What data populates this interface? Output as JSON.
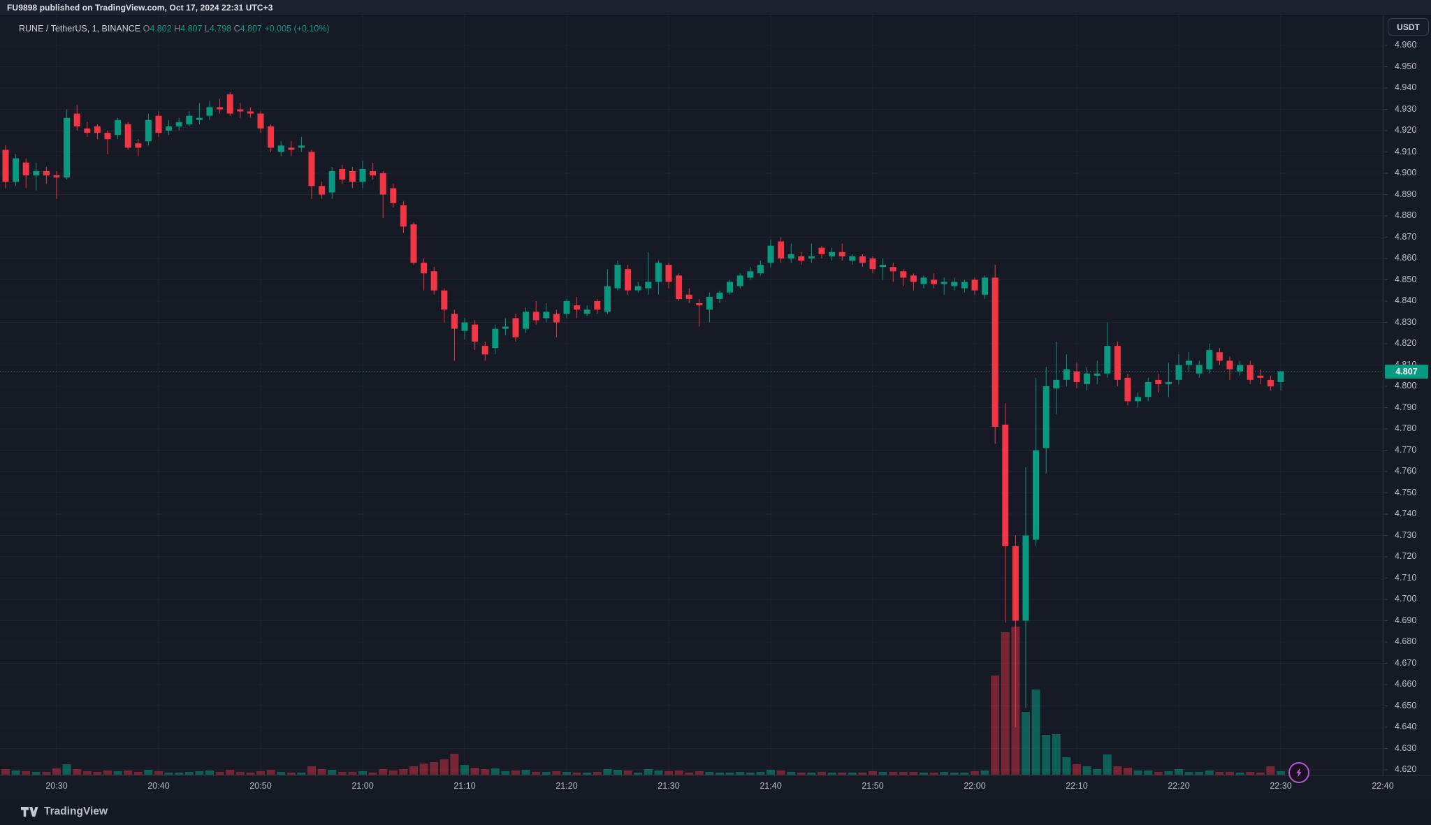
{
  "attribution": {
    "text": "FU9898 published on TradingView.com, Oct 17, 2024 22:31 UTC+3"
  },
  "legend": {
    "symbol": "RUNE / TetherUS, 1, BINANCE",
    "o_label": "O",
    "o": "4.802",
    "h_label": "H",
    "h": "4.807",
    "l_label": "L",
    "l": "4.798",
    "c_label": "C",
    "c": "4.807",
    "change": "+0.005 (+0.10%)"
  },
  "price_axis": {
    "unit_button": "USDT",
    "current_price_label": "4.807",
    "labels": [
      "4.960",
      "4.950",
      "4.940",
      "4.930",
      "4.920",
      "4.910",
      "4.900",
      "4.890",
      "4.880",
      "4.870",
      "4.860",
      "4.850",
      "4.840",
      "4.830",
      "4.820",
      "4.810",
      "4.800",
      "4.790",
      "4.780",
      "4.770",
      "4.760",
      "4.750",
      "4.740",
      "4.730",
      "4.720",
      "4.710",
      "4.700",
      "4.690",
      "4.680",
      "4.670",
      "4.660",
      "4.650",
      "4.640",
      "4.630",
      "4.620"
    ]
  },
  "time_axis": {
    "labels": [
      "20:30",
      "20:40",
      "20:50",
      "21:00",
      "21:10",
      "21:20",
      "21:30",
      "21:40",
      "21:50",
      "22:00",
      "22:10",
      "22:20",
      "22:30",
      "22:40"
    ]
  },
  "footer": {
    "logo_text": "TradingView"
  },
  "colors": {
    "up": "#089981",
    "down": "#f23645",
    "volume_up": "rgba(8,153,129,0.55)",
    "volume_down": "rgba(242,54,69,0.45)",
    "grid": "rgba(199,210,240,0.06)",
    "tick": "#3a3f4c",
    "price_line": "#089981",
    "chip_bg": "#089981",
    "boost_purple": "#bc55d4"
  },
  "chart_data": {
    "type": "candlestick+volume",
    "symbol": "RUNE/TetherUS",
    "exchange": "BINANCE",
    "interval_minutes": 1,
    "current_price": 4.807,
    "price_axis_range": [
      4.615,
      4.975
    ],
    "time_range": [
      "20:25",
      "22:30"
    ],
    "grid": true,
    "note": "columns per candle: [time, open, high, low, close, volume_rel]",
    "candles": [
      [
        "20:25",
        4.911,
        4.913,
        4.893,
        4.896,
        8
      ],
      [
        "20:26",
        4.896,
        4.909,
        4.894,
        4.907,
        6
      ],
      [
        "20:27",
        4.905,
        4.907,
        4.893,
        4.899,
        5
      ],
      [
        "20:28",
        4.899,
        4.905,
        4.892,
        4.901,
        4
      ],
      [
        "20:29",
        4.901,
        4.903,
        4.895,
        4.899,
        4
      ],
      [
        "20:30",
        4.899,
        4.901,
        4.888,
        4.898,
        9
      ],
      [
        "20:31",
        4.898,
        4.93,
        4.897,
        4.926,
        15
      ],
      [
        "20:32",
        4.928,
        4.932,
        4.92,
        4.922,
        8
      ],
      [
        "20:33",
        4.921,
        4.924,
        4.917,
        4.919,
        5
      ],
      [
        "20:34",
        4.922,
        4.923,
        4.916,
        4.919,
        4
      ],
      [
        "20:35",
        4.919,
        4.92,
        4.909,
        4.916,
        6
      ],
      [
        "20:36",
        4.918,
        4.926,
        4.916,
        4.925,
        5
      ],
      [
        "20:37",
        4.923,
        4.924,
        4.911,
        4.912,
        6
      ],
      [
        "20:38",
        4.914,
        4.916,
        4.908,
        4.912,
        4
      ],
      [
        "20:39",
        4.915,
        4.928,
        4.913,
        4.925,
        7
      ],
      [
        "20:40",
        4.927,
        4.929,
        4.917,
        4.919,
        5
      ],
      [
        "20:41",
        4.92,
        4.925,
        4.918,
        4.922,
        3
      ],
      [
        "20:42",
        4.922,
        4.926,
        4.92,
        4.924,
        3
      ],
      [
        "20:43",
        4.923,
        4.929,
        4.922,
        4.927,
        4
      ],
      [
        "20:44",
        4.925,
        4.933,
        4.923,
        4.926,
        5
      ],
      [
        "20:45",
        4.927,
        4.934,
        4.925,
        4.931,
        6
      ],
      [
        "20:46",
        4.931,
        4.935,
        4.928,
        4.93,
        4
      ],
      [
        "20:47",
        4.937,
        4.938,
        4.927,
        4.928,
        7
      ],
      [
        "20:48",
        4.93,
        4.933,
        4.926,
        4.929,
        4
      ],
      [
        "20:49",
        4.929,
        4.931,
        4.926,
        4.928,
        3
      ],
      [
        "20:50",
        4.928,
        4.929,
        4.919,
        4.921,
        5
      ],
      [
        "20:51",
        4.922,
        4.923,
        4.91,
        4.912,
        7
      ],
      [
        "20:52",
        4.91,
        4.915,
        4.908,
        4.913,
        4
      ],
      [
        "20:53",
        4.912,
        4.915,
        4.908,
        4.911,
        3
      ],
      [
        "20:54",
        4.912,
        4.917,
        4.91,
        4.913,
        3
      ],
      [
        "20:55",
        4.91,
        4.911,
        4.888,
        4.894,
        12
      ],
      [
        "20:56",
        4.894,
        4.896,
        4.888,
        4.89,
        8
      ],
      [
        "20:57",
        4.891,
        4.903,
        4.888,
        4.901,
        7
      ],
      [
        "20:58",
        4.902,
        4.904,
        4.895,
        4.897,
        4
      ],
      [
        "20:59",
        4.901,
        4.903,
        4.893,
        4.896,
        4
      ],
      [
        "21:00",
        4.896,
        4.906,
        4.893,
        4.902,
        5
      ],
      [
        "21:01",
        4.901,
        4.905,
        4.897,
        4.899,
        3
      ],
      [
        "21:02",
        4.9,
        4.901,
        4.879,
        4.89,
        8
      ],
      [
        "21:03",
        4.893,
        4.895,
        4.884,
        4.886,
        6
      ],
      [
        "21:04",
        4.885,
        4.887,
        4.872,
        4.875,
        8
      ],
      [
        "21:05",
        4.876,
        4.877,
        4.857,
        4.858,
        12
      ],
      [
        "21:06",
        4.858,
        4.86,
        4.845,
        4.853,
        16
      ],
      [
        "21:07",
        4.854,
        4.856,
        4.843,
        4.845,
        18
      ],
      [
        "21:08",
        4.845,
        4.846,
        4.83,
        4.836,
        22
      ],
      [
        "21:09",
        4.834,
        4.836,
        4.812,
        4.827,
        30
      ],
      [
        "21:10",
        4.826,
        4.832,
        4.822,
        4.83,
        14
      ],
      [
        "21:11",
        4.829,
        4.831,
        4.817,
        4.821,
        10
      ],
      [
        "21:12",
        4.819,
        4.821,
        4.812,
        4.815,
        8
      ],
      [
        "21:13",
        4.818,
        4.829,
        4.815,
        4.827,
        9
      ],
      [
        "21:14",
        4.827,
        4.832,
        4.824,
        4.828,
        5
      ],
      [
        "21:15",
        4.832,
        4.834,
        4.821,
        4.823,
        6
      ],
      [
        "21:16",
        4.827,
        4.837,
        4.825,
        4.835,
        7
      ],
      [
        "21:17",
        4.835,
        4.84,
        4.829,
        4.831,
        4
      ],
      [
        "21:18",
        4.832,
        4.839,
        4.83,
        4.835,
        4
      ],
      [
        "21:19",
        4.834,
        4.836,
        4.823,
        4.83,
        5
      ],
      [
        "21:20",
        4.834,
        4.841,
        4.832,
        4.84,
        4
      ],
      [
        "21:21",
        4.838,
        4.842,
        4.832,
        4.836,
        3
      ],
      [
        "21:22",
        4.834,
        4.838,
        4.833,
        4.836,
        3
      ],
      [
        "21:23",
        4.84,
        4.841,
        4.834,
        4.836,
        4
      ],
      [
        "21:24",
        4.835,
        4.855,
        4.834,
        4.847,
        8
      ],
      [
        "21:25",
        4.846,
        4.859,
        4.845,
        4.857,
        7
      ],
      [
        "21:26",
        4.855,
        4.857,
        4.843,
        4.845,
        6
      ],
      [
        "21:27",
        4.845,
        4.849,
        4.844,
        4.847,
        3
      ],
      [
        "21:28",
        4.846,
        4.863,
        4.843,
        4.849,
        8
      ],
      [
        "21:29",
        4.849,
        4.859,
        4.843,
        4.858,
        6
      ],
      [
        "21:30",
        4.857,
        4.858,
        4.846,
        4.849,
        5
      ],
      [
        "21:31",
        4.852,
        4.853,
        4.84,
        4.841,
        6
      ],
      [
        "21:32",
        4.843,
        4.846,
        4.839,
        4.841,
        3
      ],
      [
        "21:33",
        4.839,
        4.841,
        4.828,
        4.838,
        5
      ],
      [
        "21:34",
        4.836,
        4.844,
        4.83,
        4.842,
        4
      ],
      [
        "21:35",
        4.841,
        4.845,
        4.839,
        4.844,
        3
      ],
      [
        "21:36",
        4.844,
        4.85,
        4.843,
        4.849,
        3
      ],
      [
        "21:37",
        4.847,
        4.853,
        4.846,
        4.852,
        4
      ],
      [
        "21:38",
        4.851,
        4.856,
        4.85,
        4.854,
        3
      ],
      [
        "21:39",
        4.853,
        4.859,
        4.852,
        4.857,
        4
      ],
      [
        "21:40",
        4.858,
        4.869,
        4.856,
        4.866,
        7
      ],
      [
        "21:41",
        4.868,
        4.87,
        4.858,
        4.86,
        6
      ],
      [
        "21:42",
        4.86,
        4.867,
        4.858,
        4.862,
        4
      ],
      [
        "21:43",
        4.861,
        4.863,
        4.857,
        4.859,
        3
      ],
      [
        "21:44",
        4.86,
        4.867,
        4.858,
        4.861,
        3
      ],
      [
        "21:45",
        4.865,
        4.866,
        4.86,
        4.862,
        4
      ],
      [
        "21:46",
        4.861,
        4.865,
        4.859,
        4.863,
        3
      ],
      [
        "21:47",
        4.863,
        4.867,
        4.859,
        4.861,
        3
      ],
      [
        "21:48",
        4.859,
        4.862,
        4.857,
        4.861,
        3
      ],
      [
        "21:49",
        4.861,
        4.862,
        4.856,
        4.858,
        3
      ],
      [
        "21:50",
        4.86,
        4.861,
        4.853,
        4.855,
        5
      ],
      [
        "21:51",
        4.856,
        4.86,
        4.85,
        4.857,
        4
      ],
      [
        "21:52",
        4.856,
        4.858,
        4.849,
        4.854,
        4
      ],
      [
        "21:53",
        4.854,
        4.855,
        4.847,
        4.851,
        4
      ],
      [
        "21:54",
        4.852,
        4.853,
        4.845,
        4.849,
        4
      ],
      [
        "21:55",
        4.848,
        4.852,
        4.846,
        4.851,
        3
      ],
      [
        "21:56",
        4.85,
        4.853,
        4.846,
        4.848,
        3
      ],
      [
        "21:57",
        4.848,
        4.851,
        4.843,
        4.849,
        4
      ],
      [
        "21:58",
        4.847,
        4.851,
        4.845,
        4.849,
        3
      ],
      [
        "21:59",
        4.846,
        4.85,
        4.844,
        4.849,
        3
      ],
      [
        "22:00",
        4.85,
        4.851,
        4.843,
        4.845,
        5
      ],
      [
        "22:01",
        4.843,
        4.852,
        4.841,
        4.851,
        6
      ],
      [
        "22:02",
        4.851,
        4.857,
        4.773,
        4.781,
        142
      ],
      [
        "22:03",
        4.782,
        4.792,
        4.689,
        4.725,
        204
      ],
      [
        "22:04",
        4.725,
        4.73,
        4.64,
        4.69,
        212
      ],
      [
        "22:05",
        4.69,
        4.762,
        4.649,
        4.73,
        90
      ],
      [
        "22:06",
        4.728,
        4.804,
        4.725,
        4.77,
        122
      ],
      [
        "22:07",
        4.771,
        4.809,
        4.759,
        4.8,
        57
      ],
      [
        "22:08",
        4.799,
        4.821,
        4.787,
        4.803,
        58
      ],
      [
        "22:09",
        4.803,
        4.815,
        4.8,
        4.808,
        25
      ],
      [
        "22:10",
        4.807,
        4.811,
        4.799,
        4.802,
        15
      ],
      [
        "22:11",
        4.801,
        4.809,
        4.798,
        4.806,
        12
      ],
      [
        "22:12",
        4.805,
        4.812,
        4.801,
        4.806,
        8
      ],
      [
        "22:13",
        4.806,
        4.83,
        4.804,
        4.819,
        29
      ],
      [
        "22:14",
        4.819,
        4.821,
        4.8,
        4.803,
        12
      ],
      [
        "22:15",
        4.804,
        4.806,
        4.791,
        4.793,
        10
      ],
      [
        "22:16",
        4.793,
        4.797,
        4.79,
        4.795,
        6
      ],
      [
        "22:17",
        4.795,
        4.804,
        4.793,
        4.802,
        6
      ],
      [
        "22:18",
        4.803,
        4.806,
        4.797,
        4.801,
        4
      ],
      [
        "22:19",
        4.801,
        4.811,
        4.795,
        4.802,
        5
      ],
      [
        "22:20",
        4.803,
        4.815,
        4.801,
        4.81,
        8
      ],
      [
        "22:21",
        4.81,
        4.816,
        4.807,
        4.812,
        4
      ],
      [
        "22:22",
        4.806,
        4.812,
        4.804,
        4.81,
        4
      ],
      [
        "22:23",
        4.808,
        4.82,
        4.806,
        4.817,
        6
      ],
      [
        "22:24",
        4.816,
        4.818,
        4.81,
        4.812,
        4
      ],
      [
        "22:25",
        4.812,
        4.814,
        4.803,
        4.808,
        4
      ],
      [
        "22:26",
        4.807,
        4.812,
        4.805,
        4.81,
        3
      ],
      [
        "22:27",
        4.81,
        4.812,
        4.801,
        4.803,
        4
      ],
      [
        "22:28",
        4.805,
        4.808,
        4.801,
        4.804,
        3
      ],
      [
        "22:29",
        4.803,
        4.805,
        4.798,
        4.8,
        12
      ],
      [
        "22:30",
        4.802,
        4.807,
        4.798,
        4.807,
        5
      ]
    ]
  }
}
